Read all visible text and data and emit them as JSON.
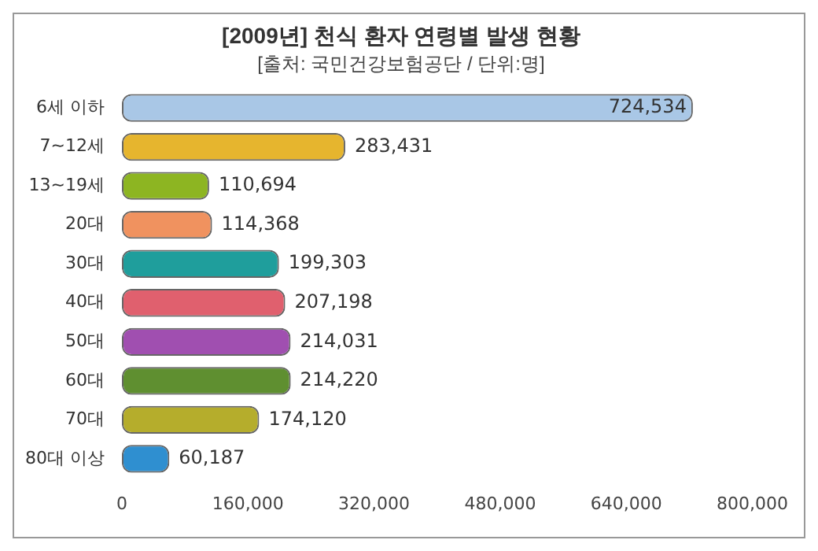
{
  "chart_data": {
    "type": "bar",
    "orientation": "horizontal",
    "title": "[2009년] 천식 환자 연령별 발생 현황",
    "subtitle": "[출처: 국민건강보험공단 / 단위:명]",
    "categories": [
      "6세 이하",
      "7~12세",
      "13~19세",
      "20대",
      "30대",
      "40대",
      "50대",
      "60대",
      "70대",
      "80대 이상"
    ],
    "values": [
      724534,
      283431,
      110694,
      114368,
      199303,
      207198,
      214031,
      214220,
      174120,
      60187
    ],
    "value_labels": [
      "724,534",
      "283,431",
      "110,694",
      "114,368",
      "199,303",
      "207,198",
      "214,031",
      "214,220",
      "174,120",
      "60,187"
    ],
    "colors": [
      "#a9c7e6",
      "#e6b52e",
      "#8db522",
      "#f0925f",
      "#1f9e9c",
      "#e0606e",
      "#a04fb0",
      "#5f8f30",
      "#b5ad2c",
      "#2f8fd0"
    ],
    "xlim": [
      0,
      800000
    ],
    "xticks": [
      0,
      {
        "value": 160000,
        "label": "160,000"
      },
      {
        "value": 320000,
        "label": "320,000"
      },
      {
        "value": 480000,
        "label": "480,000"
      },
      {
        "value": 640000,
        "label": "640,000"
      },
      {
        "value": 800000,
        "label": "800,000"
      }
    ]
  }
}
